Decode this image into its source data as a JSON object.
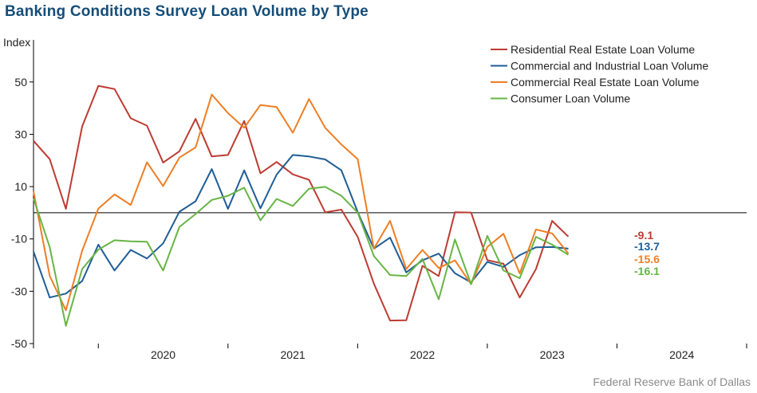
{
  "source": "Federal Reserve Bank of Dallas",
  "chart_data": {
    "type": "line",
    "title": "Banking Conditions Survey Loan Volume by Type",
    "ylabel": "Index",
    "xlabel": "",
    "ylim": [
      -50,
      60
    ],
    "yticks": [
      -50,
      -30,
      -10,
      10,
      30,
      50
    ],
    "xticks": [
      {
        "label": "2020",
        "year": 2020
      },
      {
        "label": "2021",
        "year": 2021
      },
      {
        "label": "2022",
        "year": 2022
      },
      {
        "label": "2023",
        "year": 2023
      },
      {
        "label": "2024",
        "year": 2024
      }
    ],
    "x_start_year": 2019.5,
    "x_end_year": 2025.0,
    "x_step_years": 0.125,
    "legend_position": "top-right",
    "series": [
      {
        "name": "Residential Real Estate Loan Volume",
        "color": "#bd3b32",
        "end_label": "-9.1",
        "values": [
          27.5,
          20.5,
          1.5,
          33,
          48.5,
          47.3,
          36.1,
          33.3,
          19.2,
          23.5,
          35.9,
          21.5,
          22.1,
          35.1,
          15.1,
          19.4,
          14.7,
          12.6,
          0.2,
          1.2,
          -9.2,
          -27.1,
          -41.2,
          -41.1,
          -20.3,
          -24.2,
          0.2,
          0.1,
          -18.1,
          -19.5,
          -32.4,
          -21.5,
          -3.1,
          -9.1
        ]
      },
      {
        "name": "Commercial and Industrial Loan Volume",
        "color": "#1f5d96",
        "end_label": "-13.7",
        "values": [
          -14.8,
          -32.4,
          -30.9,
          -26.1,
          -12.2,
          -22.1,
          -14.2,
          -17.5,
          -11.7,
          0.4,
          4.4,
          16.7,
          1.5,
          16.2,
          1.7,
          14.6,
          22.1,
          21.5,
          20.4,
          16.2,
          0.3,
          -13.7,
          -9.5,
          -22.8,
          -18.2,
          -15.6,
          -23.1,
          -26.6,
          -18.8,
          -20.7,
          -16.2,
          -13.2,
          -13.1,
          -13.7
        ]
      },
      {
        "name": "Commercial Real Estate Loan Volume",
        "color": "#ee7e24",
        "end_label": "-15.6",
        "values": [
          8.2,
          -24.1,
          -37.3,
          -14.5,
          1.6,
          7,
          3,
          19.3,
          10.2,
          21.1,
          25,
          45.2,
          38.1,
          32.5,
          41.2,
          40.4,
          30.6,
          43.5,
          32.5,
          26.1,
          20.5,
          -13.7,
          -3.1,
          -21.5,
          -14.2,
          -21.1,
          -18.2,
          -27.3,
          -13.1,
          -8,
          -23.2,
          -6.4,
          -7.9,
          -15.6
        ]
      },
      {
        "name": "Consumer Loan Volume",
        "color": "#67b545",
        "end_label": "-16.1",
        "values": [
          5.5,
          -13.1,
          -43.2,
          -21.5,
          -14.1,
          -10.5,
          -10.9,
          -11.1,
          -22.1,
          -5.4,
          -0.5,
          4.9,
          6.5,
          9.6,
          -2.9,
          5.3,
          2.6,
          9.2,
          9.9,
          6.5,
          0.1,
          -16.5,
          -23.8,
          -24.2,
          -17.6,
          -33.1,
          -10.2,
          -27.3,
          -8.8,
          -22.1,
          -25,
          -9.2,
          -12.2,
          -16.1
        ]
      }
    ]
  }
}
